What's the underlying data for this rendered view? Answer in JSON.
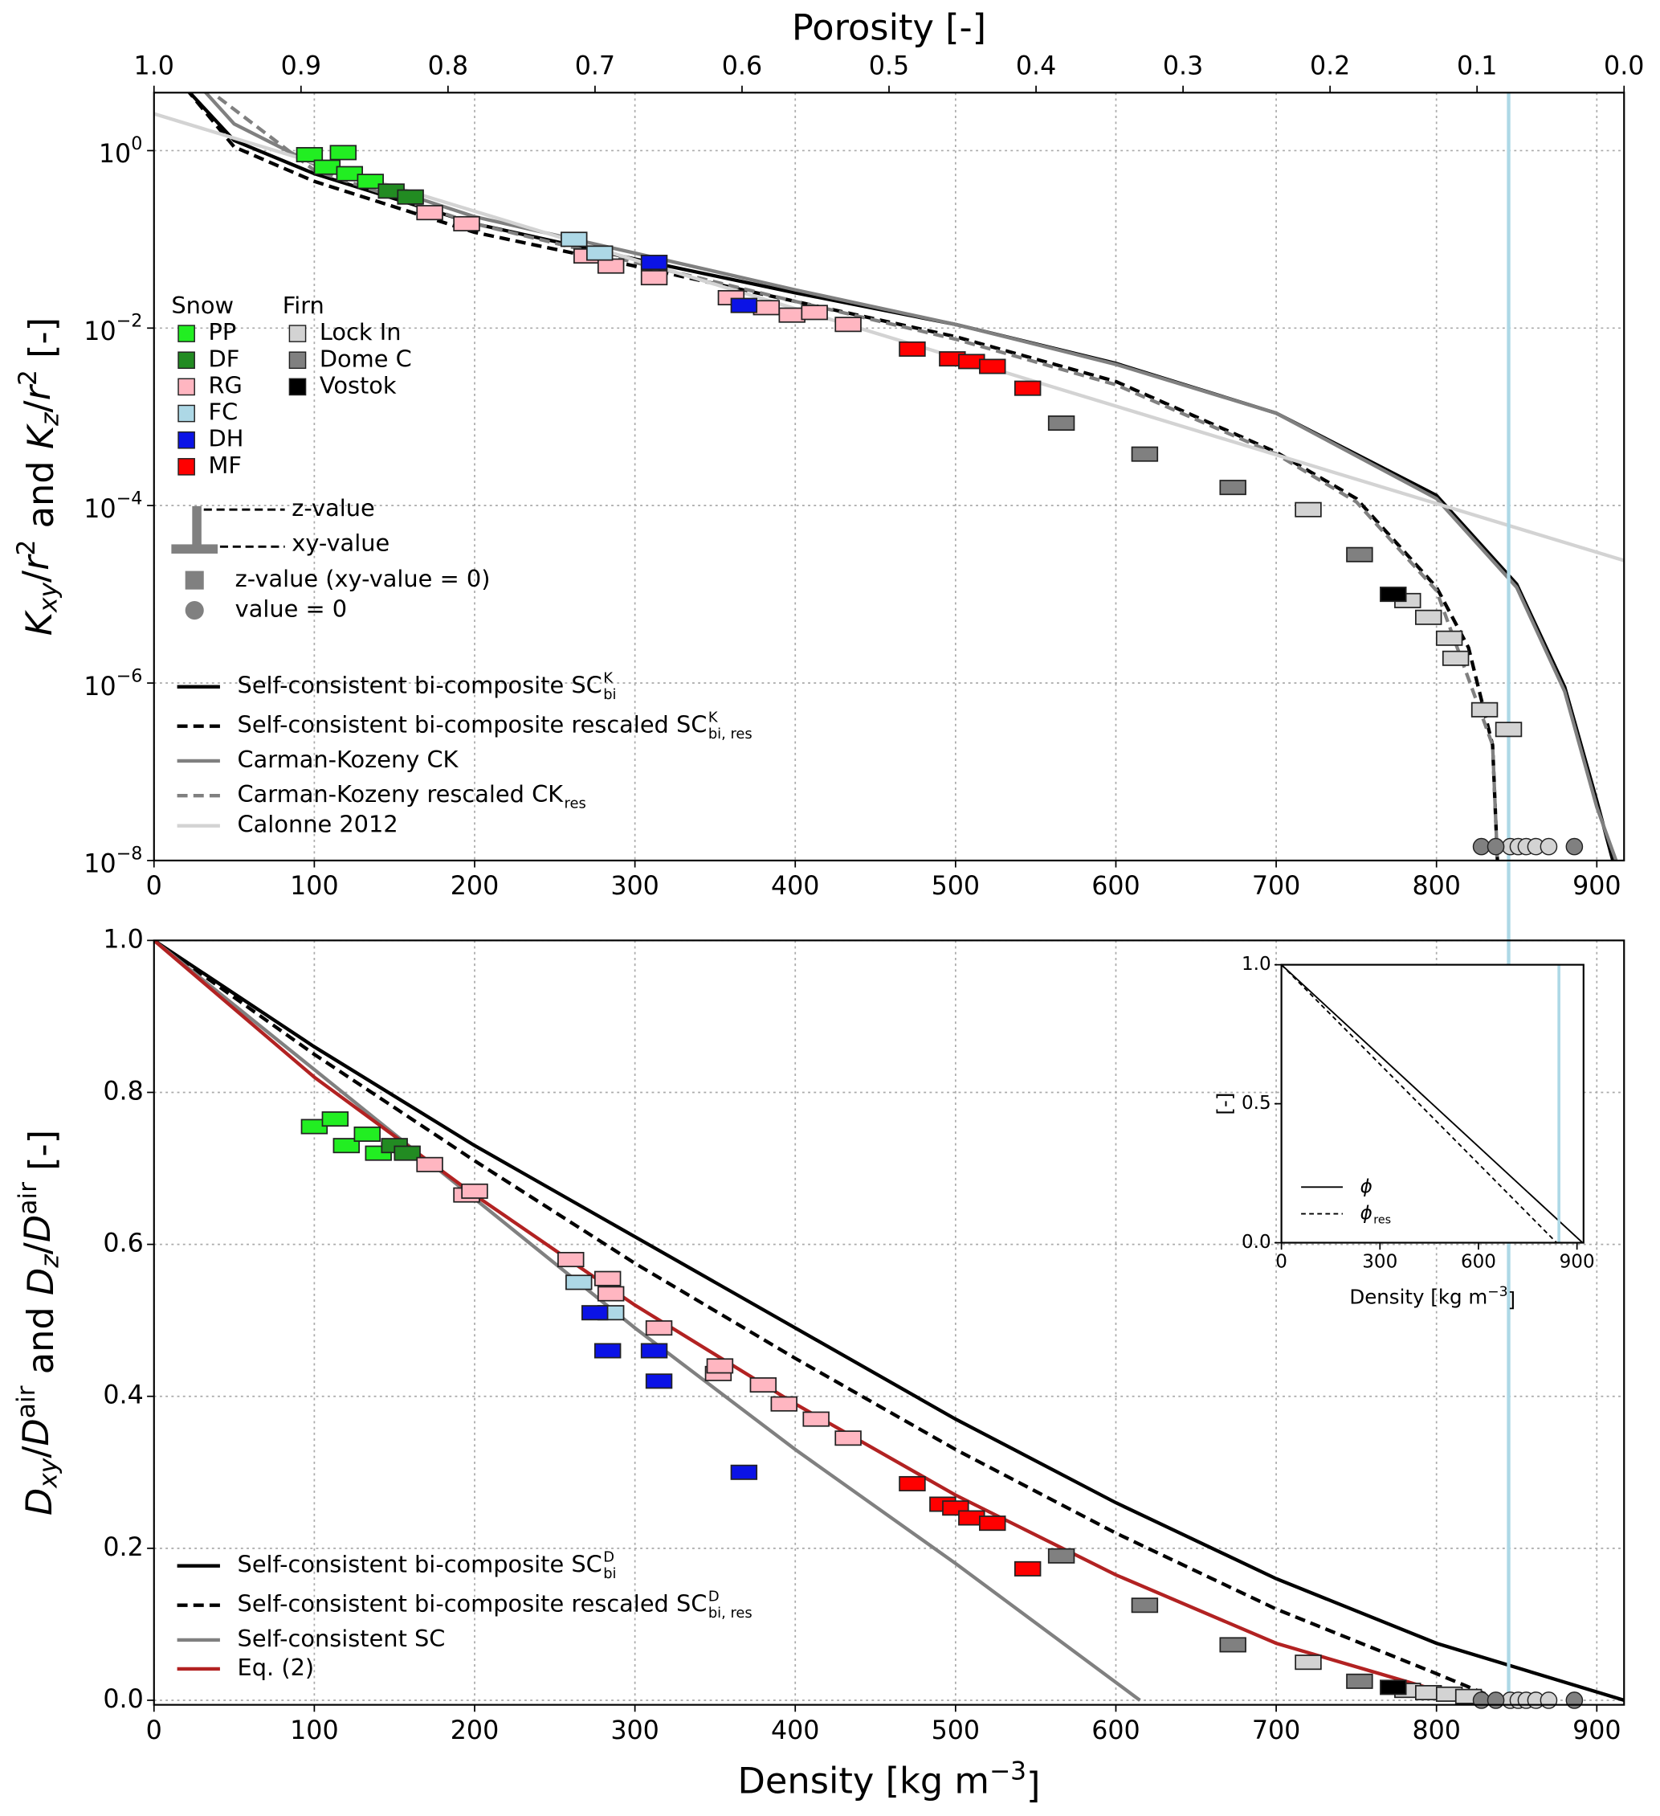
{
  "chart_data": [
    {
      "type": "scatter",
      "x2label": "Porosity [-]",
      "x2lim": [
        1,
        0
      ],
      "x2ticks": [
        {
          "value": 1,
          "label": "1.0"
        },
        0.9,
        0.8,
        0.7,
        0.6,
        0.5,
        0.4,
        0.3,
        0.2,
        0.1,
        {
          "value": 0,
          "label": "0.0"
        }
      ],
      "ylabel": [
        {
          "text": "K",
          "italic": true
        },
        {
          "text": "xy",
          "sub": true,
          "italic": true
        },
        {
          "text": "/"
        },
        {
          "text": "r",
          "italic": true
        },
        {
          "text": "2",
          "sup": true
        },
        {
          "text": " and "
        },
        {
          "text": "K",
          "italic": true
        },
        {
          "text": "z",
          "sub": true,
          "italic": true
        },
        {
          "text": "/"
        },
        {
          "text": "r",
          "italic": true
        },
        {
          "text": "2",
          "sup": true
        },
        {
          "text": " [-]"
        }
      ],
      "xlim": [
        0,
        917
      ],
      "xticks": [
        0,
        100,
        200,
        300,
        400,
        500,
        600,
        700,
        800,
        900
      ],
      "yscale": "log",
      "ylim": [
        1e-08,
        4.5
      ],
      "yticks": [
        {
          "value": 1,
          "label": "10",
          "exponent": "0"
        },
        {
          "value": 0.01,
          "label": "10",
          "exponent": "−2"
        },
        {
          "value": 0.0001,
          "label": "10",
          "exponent": "−4"
        },
        {
          "value": 1e-06,
          "label": "10",
          "exponent": "−6"
        },
        {
          "value": 1e-08,
          "label": "10",
          "exponent": "−8"
        }
      ],
      "grid": true,
      "vline": {
        "x": 845,
        "color": "#add8e6"
      },
      "marker_groups": [
        {
          "title": "Snow",
          "series": [
            {
              "name": "PP",
              "color": "#22ee22",
              "x": [
                97,
                118,
                108,
                122,
                135
              ],
              "values": [
                0.9,
                0.95,
                0.65,
                0.55,
                0.45
              ]
            },
            {
              "name": "DF",
              "color": "#228b22",
              "x": [
                148,
                160
              ],
              "values": [
                0.35,
                0.3
              ]
            },
            {
              "name": "RG",
              "color": "#ffb6c1",
              "x": [
                172,
                195,
                270,
                285,
                312,
                360,
                382,
                398,
                412,
                433
              ],
              "values": [
                0.2,
                0.15,
                0.065,
                0.05,
                0.037,
                0.022,
                0.017,
                0.014,
                0.015,
                0.011
              ]
            },
            {
              "name": "FC",
              "color": "#add8e6",
              "x": [
                262,
                278
              ],
              "values": [
                0.1,
                0.07
              ]
            },
            {
              "name": "DH",
              "color": "#0b13e6",
              "x": [
                312,
                368
              ],
              "values": [
                0.055,
                0.018
              ]
            },
            {
              "name": "MF",
              "color": "#ff0000",
              "x": [
                473,
                498,
                510,
                523,
                545
              ],
              "values": [
                0.0058,
                0.0045,
                0.0042,
                0.0037,
                0.0021
              ]
            }
          ]
        },
        {
          "title": "Firn",
          "series": [
            {
              "name": "Lock In",
              "color": "#d3d3d3",
              "x": [
                720,
                782,
                795,
                808,
                812,
                830,
                845
              ],
              "values": [
                9e-05,
                8.5e-06,
                5.5e-06,
                3.2e-06,
                1.9e-06,
                5e-07,
                3e-07
              ],
              "zero_x": [
                846,
                851,
                856,
                862,
                870
              ]
            },
            {
              "name": "Dome C",
              "color": "#808080",
              "x": [
                566,
                618,
                673,
                752
              ],
              "values": [
                0.00085,
                0.00038,
                0.00016,
                2.8e-05
              ],
              "zero_x": [
                828,
                837,
                886
              ]
            },
            {
              "name": "Vostok",
              "color": "#000000",
              "x": [
                773
              ],
              "values": [
                1e-05
              ]
            }
          ]
        }
      ],
      "marker_legend": {
        "z": "z-value",
        "xy": "xy-value",
        "square": "z-value (xy-value = 0)",
        "circle": "value = 0"
      },
      "curves": [
        {
          "name": "Self-consistent bi-composite SC",
          "sup": "K",
          "sub": "bi",
          "color": "#000000",
          "dash": false,
          "x": [
            20,
            50,
            100,
            200,
            300,
            400,
            500,
            600,
            700,
            800,
            850,
            880,
            900,
            910
          ],
          "values": [
            5,
            1.3,
            0.55,
            0.15,
            0.06,
            0.025,
            0.011,
            0.004,
            0.0011,
            0.00013,
            1.3e-05,
            9e-07,
            4.7e-08,
            1e-08
          ]
        },
        {
          "name": "Self-consistent bi-composite rescaled SC",
          "sup": "K",
          "sub": "bi, res",
          "color": "#000000",
          "dash": true,
          "x": [
            20,
            50,
            100,
            200,
            300,
            400,
            500,
            600,
            700,
            750,
            800,
            820,
            835,
            838
          ],
          "values": [
            5,
            1.1,
            0.45,
            0.12,
            0.05,
            0.02,
            0.008,
            0.0025,
            0.0004,
            0.00012,
            1.2e-05,
            2.5e-06,
            2e-07,
            1e-08
          ]
        },
        {
          "name": "Carman-Kozeny CK",
          "color": "#808080",
          "dash": false,
          "x": [
            30,
            50,
            100,
            200,
            300,
            400,
            500,
            600,
            700,
            800,
            850,
            880,
            900,
            912
          ],
          "values": [
            5,
            2,
            0.7,
            0.18,
            0.07,
            0.027,
            0.011,
            0.0039,
            0.0011,
            0.00012,
            1.2e-05,
            8e-07,
            4e-08,
            1e-08
          ]
        },
        {
          "name": "Carman-Kozeny rescaled CK",
          "sub": "res",
          "color": "#808080",
          "dash": true,
          "x": [
            40,
            100,
            200,
            300,
            400,
            500,
            600,
            700,
            750,
            800,
            835,
            838
          ],
          "values": [
            4,
            0.6,
            0.15,
            0.055,
            0.02,
            0.0075,
            0.0023,
            0.00038,
            0.00011,
            1.1e-05,
            2e-07,
            1e-08
          ]
        },
        {
          "name": "Calonne 2012",
          "color": "#d3d3d3",
          "dash": false,
          "x": [
            0,
            917
          ],
          "values": [
            2.6,
            2.4e-05
          ]
        }
      ]
    },
    {
      "type": "scatter",
      "xlabel": [
        {
          "text": "Density [kg m"
        },
        {
          "text": "−3",
          "sup": true
        },
        {
          "text": "]"
        }
      ],
      "ylabel": [
        {
          "text": "D",
          "italic": true
        },
        {
          "text": "xy",
          "sub": true,
          "italic": true
        },
        {
          "text": "/"
        },
        {
          "text": "D",
          "italic": true
        },
        {
          "text": "air",
          "sup": true
        },
        {
          "text": " and "
        },
        {
          "text": "D",
          "italic": true
        },
        {
          "text": "z",
          "sub": true,
          "italic": true
        },
        {
          "text": "/"
        },
        {
          "text": "D",
          "italic": true
        },
        {
          "text": "air",
          "sup": true
        },
        {
          "text": " [-]"
        }
      ],
      "xlim": [
        0,
        917
      ],
      "xticks": [
        0,
        100,
        200,
        300,
        400,
        500,
        600,
        700,
        800,
        900
      ],
      "ylim": [
        -0.006,
        1
      ],
      "yticks": [
        {
          "value": 0,
          "label": "0.0"
        },
        0.2,
        0.4,
        0.6,
        0.8,
        {
          "value": 1,
          "label": "1.0"
        }
      ],
      "grid": true,
      "vline": {
        "x": 845,
        "color": "#add8e6"
      },
      "marker_groups": [
        {
          "series": [
            {
              "color": "#22ee22",
              "x": [
                100,
                113,
                120,
                133,
                140
              ],
              "values": [
                0.755,
                0.765,
                0.73,
                0.745,
                0.72
              ]
            },
            {
              "color": "#228b22",
              "x": [
                150,
                158
              ],
              "values": [
                0.73,
                0.72
              ]
            },
            {
              "color": "#ffb6c1",
              "x": [
                172,
                195,
                200,
                260,
                283,
                285,
                315,
                352,
                353,
                380,
                393,
                413,
                433
              ],
              "values": [
                0.705,
                0.665,
                0.67,
                0.58,
                0.555,
                0.535,
                0.49,
                0.43,
                0.44,
                0.415,
                0.39,
                0.37,
                0.345
              ]
            },
            {
              "color": "#add8e6",
              "x": [
                265,
                285
              ],
              "values": [
                0.55,
                0.51
              ]
            },
            {
              "color": "#0b13e6",
              "x": [
                275,
                283,
                312,
                315,
                368
              ],
              "values": [
                0.51,
                0.46,
                0.46,
                0.42,
                0.3
              ]
            },
            {
              "color": "#ff0000",
              "x": [
                473,
                492,
                500,
                510,
                523,
                545
              ],
              "values": [
                0.285,
                0.258,
                0.253,
                0.24,
                0.233,
                0.173
              ]
            }
          ]
        },
        {
          "series": [
            {
              "color": "#d3d3d3",
              "x": [
                720,
                782,
                795,
                808,
                820
              ],
              "values": [
                0.05,
                0.013,
                0.01,
                0.008,
                0.005
              ],
              "zero_x": [
                846,
                851,
                856,
                862,
                870
              ]
            },
            {
              "color": "#808080",
              "x": [
                566,
                618,
                673,
                752
              ],
              "values": [
                0.19,
                0.125,
                0.073,
                0.025
              ],
              "zero_x": [
                828,
                837,
                886
              ]
            },
            {
              "color": "#000000",
              "x": [
                773
              ],
              "values": [
                0.017
              ]
            }
          ]
        }
      ],
      "curves": [
        {
          "name": "Self-consistent bi-composite SC",
          "sup": "D",
          "sub": "bi",
          "color": "#000000",
          "dash": false,
          "x": [
            0,
            100,
            200,
            300,
            400,
            500,
            600,
            700,
            800,
            917
          ],
          "values": [
            1,
            0.86,
            0.73,
            0.61,
            0.49,
            0.37,
            0.26,
            0.16,
            0.075,
            0
          ]
        },
        {
          "name": "Self-consistent bi-composite rescaled SC",
          "sup": "D",
          "sub": "bi, res",
          "color": "#000000",
          "dash": true,
          "x": [
            0,
            100,
            200,
            300,
            400,
            500,
            600,
            700,
            800,
            840
          ],
          "values": [
            1,
            0.85,
            0.71,
            0.575,
            0.45,
            0.33,
            0.22,
            0.12,
            0.035,
            0
          ]
        },
        {
          "name": "Self-consistent SC",
          "color": "#808080",
          "dash": false,
          "x": [
            0,
            100,
            200,
            300,
            400,
            500,
            615
          ],
          "values": [
            1,
            0.83,
            0.66,
            0.49,
            0.33,
            0.18,
            0
          ]
        },
        {
          "name": "Eq. (2)",
          "color": "#b22222",
          "dash": false,
          "x": [
            0,
            100,
            200,
            300,
            400,
            500,
            600,
            700,
            800,
            838
          ],
          "values": [
            1,
            0.82,
            0.665,
            0.52,
            0.39,
            0.27,
            0.165,
            0.075,
            0.013,
            0
          ]
        }
      ]
    },
    {
      "type": "line",
      "xlabel": [
        {
          "text": "Density [kg m"
        },
        {
          "text": "−3",
          "sup": true
        },
        {
          "text": "]"
        }
      ],
      "ylabel": [
        {
          "text": "[-]"
        }
      ],
      "xlim": [
        0,
        920
      ],
      "xticks": [
        0,
        300,
        600,
        900
      ],
      "ylim": [
        0,
        1
      ],
      "yticks": [
        {
          "value": 0,
          "label": "0.0"
        },
        0.5,
        {
          "value": 1,
          "label": "1.0"
        }
      ],
      "grid": false,
      "vline": {
        "x": 845,
        "color": "#add8e6"
      },
      "curves": [
        {
          "name": "ϕ",
          "color": "#000000",
          "dash": false,
          "x": [
            0,
            917
          ],
          "values": [
            1,
            0
          ]
        },
        {
          "name": "ϕ",
          "sub": "res",
          "color": "#000000",
          "dash": true,
          "x": [
            0,
            838
          ],
          "values": [
            1,
            0
          ]
        }
      ]
    }
  ]
}
